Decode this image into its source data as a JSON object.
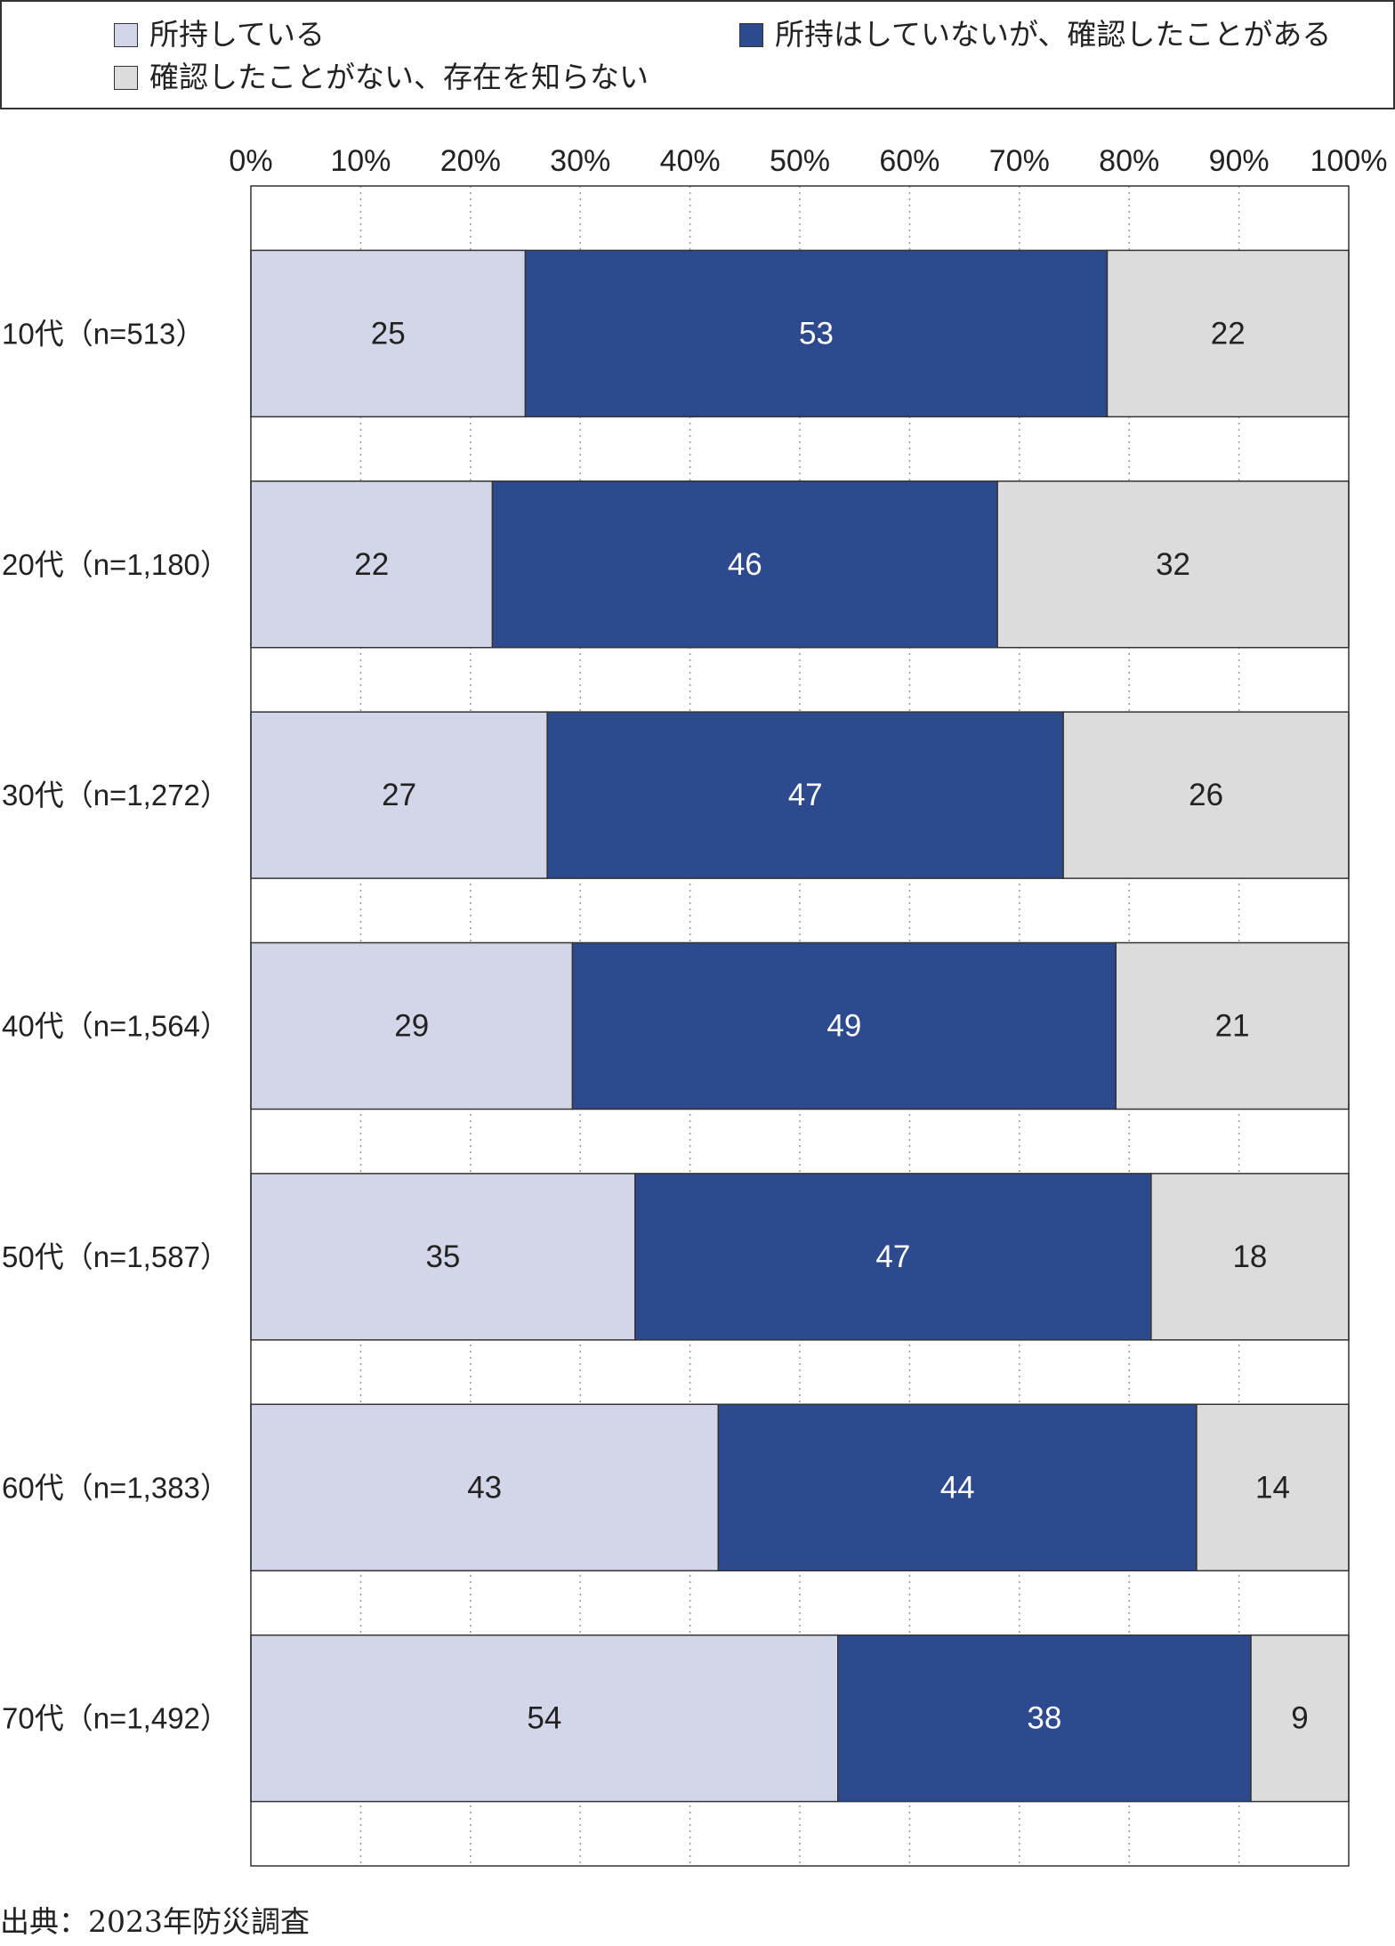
{
  "chart_data": {
    "type": "bar",
    "orientation": "horizontal",
    "stacked": true,
    "normalized": true,
    "categories": [
      "10代（n=513）",
      "20代（n=1,180）",
      "30代（n=1,272）",
      "40代（n=1,564）",
      "50代（n=1,587）",
      "60代（n=1,383）",
      "70代（n=1,492）"
    ],
    "series": [
      {
        "name": "所持している",
        "values": [
          25,
          22,
          27,
          29,
          35,
          43,
          54
        ],
        "color": "#d3d6e8",
        "label_color": "#222222"
      },
      {
        "name": "所持はしていないが、確認したことがある",
        "values": [
          53,
          46,
          47,
          49,
          47,
          44,
          38
        ],
        "color": "#2e4a8e",
        "label_color": "#ffffff"
      },
      {
        "name": "確認したことがない、存在を知らない",
        "values": [
          22,
          32,
          26,
          21,
          18,
          14,
          9
        ],
        "color": "#dcdcdc",
        "label_color": "#222222"
      }
    ],
    "x_ticks": [
      "0%",
      "10%",
      "20%",
      "30%",
      "40%",
      "50%",
      "60%",
      "70%",
      "80%",
      "90%",
      "100%"
    ],
    "xlim": [
      0,
      100
    ],
    "grid": true,
    "legend_position": "top"
  },
  "footer": {
    "source": "出典：2023年防災調査"
  }
}
